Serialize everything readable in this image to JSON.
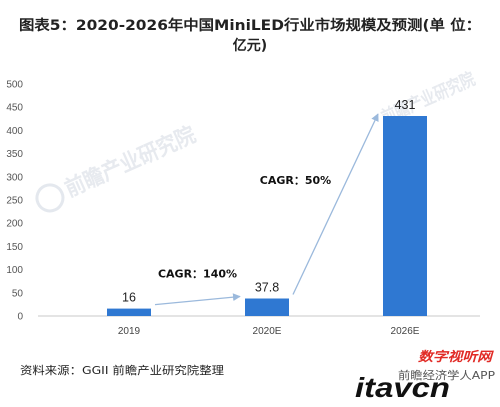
{
  "chart_data": {
    "type": "bar",
    "title": [
      "图表5：2020-2026年中国MiniLED行业市场规模及预测(单 位：",
      "亿元)"
    ],
    "categories": [
      "2019",
      "2020E",
      "2026E"
    ],
    "values": [
      16,
      37.8,
      431
    ],
    "ylim": [
      0,
      500
    ],
    "yticks": [
      0,
      50,
      100,
      150,
      200,
      250,
      300,
      350,
      400,
      450,
      500
    ],
    "xlabel": "",
    "ylabel": "",
    "grid": false,
    "legend": "none",
    "annotations": [
      {
        "text": "CAGR：140%",
        "from": "2019",
        "to": "2020E"
      },
      {
        "text": "CAGR：50%",
        "from": "2020E",
        "to": "2026E"
      }
    ],
    "colors": {
      "bar": "#2f78d2",
      "arrow": "#9bb9dc",
      "axis": "#c8c8c8"
    }
  },
  "source": "资料来源：GGII 前瞻产业研究院整理",
  "watermark": {
    "text": "前瞻产业研究院",
    "app": "前瞻经济学人APP"
  },
  "logo": {
    "cn": "数字视听网",
    "en": "itavcn"
  }
}
